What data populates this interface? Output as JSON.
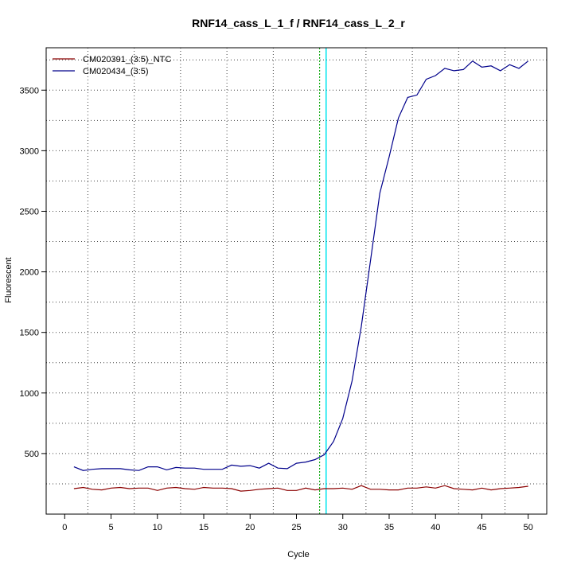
{
  "chart_data": {
    "type": "line",
    "title": "RNF14_cass_L_1_f / RNF14_cass_L_2_r",
    "xlabel": "Cycle",
    "ylabel": "Fluorescent",
    "xlim": [
      -2,
      52
    ],
    "ylim": [
      0,
      3850
    ],
    "x_ticks": [
      0,
      5,
      10,
      15,
      20,
      25,
      30,
      35,
      40,
      45,
      50
    ],
    "y_ticks": [
      500,
      1000,
      1500,
      2000,
      2500,
      3000,
      3500
    ],
    "grid": true,
    "legend_position": "top-left",
    "x": [
      1,
      2,
      3,
      4,
      5,
      6,
      7,
      8,
      9,
      10,
      11,
      12,
      13,
      14,
      15,
      16,
      17,
      18,
      19,
      20,
      21,
      22,
      23,
      24,
      25,
      26,
      27,
      28,
      29,
      30,
      31,
      32,
      33,
      34,
      35,
      36,
      37,
      38,
      39,
      40,
      41,
      42,
      43,
      44,
      45,
      46,
      47,
      48,
      49,
      50
    ],
    "series": [
      {
        "name": "CM020391_(3:5)_NTC",
        "color": "#8b0000",
        "values": [
          210,
          220,
          205,
          200,
          215,
          220,
          210,
          215,
          215,
          195,
          215,
          220,
          210,
          205,
          220,
          215,
          215,
          210,
          190,
          195,
          205,
          210,
          215,
          195,
          195,
          215,
          200,
          210,
          210,
          215,
          205,
          235,
          205,
          205,
          200,
          200,
          215,
          215,
          225,
          215,
          235,
          210,
          205,
          200,
          215,
          200,
          210,
          215,
          220,
          230
        ]
      },
      {
        "name": "CM020434_(3:5)",
        "color": "#00008b",
        "values": [
          390,
          360,
          370,
          375,
          375,
          375,
          365,
          360,
          390,
          390,
          365,
          385,
          380,
          380,
          370,
          370,
          370,
          405,
          395,
          400,
          380,
          420,
          380,
          375,
          420,
          430,
          450,
          490,
          600,
          790,
          1100,
          1550,
          2100,
          2650,
          2950,
          3270,
          3440,
          3460,
          3590,
          3620,
          3680,
          3660,
          3670,
          3740,
          3690,
          3700,
          3660,
          3710,
          3680,
          3740
        ]
      }
    ],
    "vlines": [
      {
        "x": 27.5,
        "color": "#00aa00",
        "style": "dotted"
      },
      {
        "x": 28.2,
        "color": "#00e5ee",
        "style": "solid"
      }
    ]
  }
}
